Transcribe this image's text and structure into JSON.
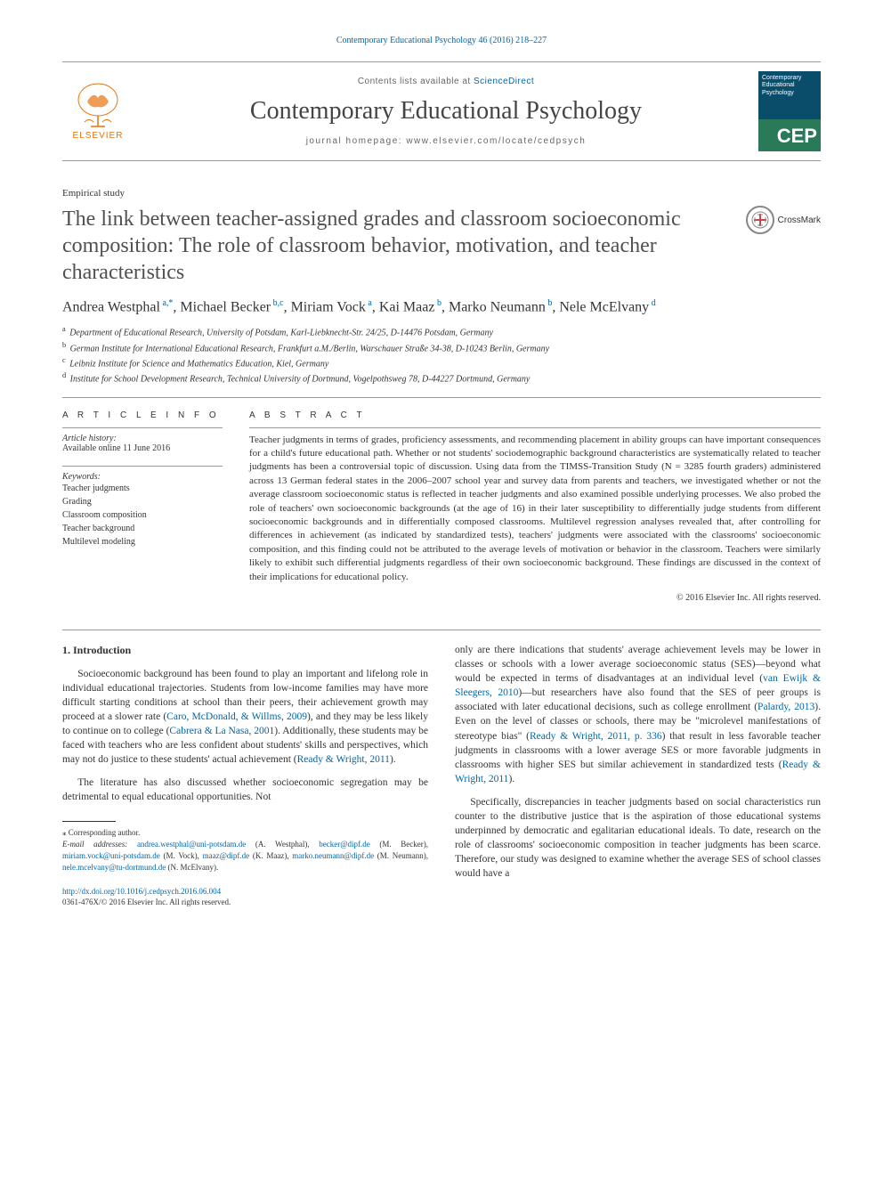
{
  "citation": "Contemporary Educational Psychology 46 (2016) 218–227",
  "masthead": {
    "contents_prefix": "Contents lists available at ",
    "contents_link": "ScienceDirect",
    "journal_name": "Contemporary Educational Psychology",
    "homepage_prefix": "journal homepage: ",
    "homepage_url": "www.elsevier.com/locate/cedpsych",
    "elsevier": "ELSEVIER",
    "cover": {
      "title": "Contemporary Educational Psychology",
      "abbr": "CEP"
    }
  },
  "crossmark_label": "CrossMark",
  "article_type": "Empirical study",
  "title": "The link between teacher-assigned grades and classroom socioeconomic composition: The role of classroom behavior, motivation, and teacher characteristics",
  "authors_html": "Andrea Westphal<sup> a,*</sup>, Michael Becker<sup> b,c</sup>, Miriam Vock<sup> a</sup>, Kai Maaz<sup> b</sup>, Marko Neumann<sup> b</sup>, Nele McElvany<sup> d</sup>",
  "affiliations": [
    {
      "sup": "a",
      "text": "Department of Educational Research, University of Potsdam, Karl-Liebknecht-Str. 24/25, D-14476 Potsdam, Germany"
    },
    {
      "sup": "b",
      "text": "German Institute for International Educational Research, Frankfurt a.M./Berlin, Warschauer Straße 34-38, D-10243 Berlin, Germany"
    },
    {
      "sup": "c",
      "text": "Leibniz Institute for Science and Mathematics Education, Kiel, Germany"
    },
    {
      "sup": "d",
      "text": "Institute for School Development Research, Technical University of Dortmund, Vogelpothsweg 78, D-44227 Dortmund, Germany"
    }
  ],
  "info": {
    "heading": "A R T I C L E   I N F O",
    "history_label": "Article history:",
    "history_text": "Available online 11 June 2016",
    "keywords_label": "Keywords:",
    "keywords": [
      "Teacher judgments",
      "Grading",
      "Classroom composition",
      "Teacher background",
      "Multilevel modeling"
    ]
  },
  "abstract": {
    "heading": "A B S T R A C T",
    "text": "Teacher judgments in terms of grades, proficiency assessments, and recommending placement in ability groups can have important consequences for a child's future educational path. Whether or not students' sociodemographic background characteristics are systematically related to teacher judgments has been a controversial topic of discussion. Using data from the TIMSS-Transition Study (N = 3285 fourth graders) administered across 13 German federal states in the 2006–2007 school year and survey data from parents and teachers, we investigated whether or not the average classroom socioeconomic status is reflected in teacher judgments and also examined possible underlying processes. We also probed the role of teachers' own socioeconomic backgrounds (at the age of 16) in their later susceptibility to differentially judge students from different socioeconomic backgrounds and in differentially composed classrooms. Multilevel regression analyses revealed that, after controlling for differences in achievement (as indicated by standardized tests), teachers' judgments were associated with the classrooms' socioeconomic composition, and this finding could not be attributed to the average levels of motivation or behavior in the classroom. Teachers were similarly likely to exhibit such differential judgments regardless of their own socioeconomic background. These findings are discussed in the context of their implications for educational policy.",
    "copyright": "© 2016 Elsevier Inc. All rights reserved."
  },
  "body": {
    "section_heading": "1. Introduction",
    "left_p1_a": "Socioeconomic background has been found to play an important and lifelong role in individual educational trajectories. Students from low-income families may have more difficult starting conditions at school than their peers, their achievement growth may proceed at a slower rate (",
    "cite1": "Caro, McDonald, & Willms, 2009",
    "left_p1_b": "), and they may be less likely to continue on to college (",
    "cite2": "Cabrera & La Nasa, 2001",
    "left_p1_c": "). Additionally, these students may be faced with teachers who are less confident about students' skills and perspectives, which may not do justice to these students' actual achievement (",
    "cite3": "Ready & Wright, 2011",
    "left_p1_d": ").",
    "left_p2": "The literature has also discussed whether socioeconomic segregation may be detrimental to equal educational opportunities. Not",
    "right_p1_a": "only are there indications that students' average achievement levels may be lower in classes or schools with a lower average socioeconomic status (SES)—beyond what would be expected in terms of disadvantages at an individual level (",
    "cite4": "van Ewijk & Sleegers, 2010",
    "right_p1_b": ")—but researchers have also found that the SES of peer groups is associated with later educational decisions, such as college enrollment (",
    "cite5": "Palardy, 2013",
    "right_p1_c": "). Even on the level of classes or schools, there may be \"microlevel manifestations of stereotype bias\" (",
    "cite6": "Ready & Wright, 2011, p. 336",
    "right_p1_d": ") that result in less favorable teacher judgments in classrooms with a lower average SES or more favorable judgments in classrooms with higher SES but similar achievement in standardized tests (",
    "cite7": "Ready & Wright, 2011",
    "right_p1_e": ").",
    "right_p2": "Specifically, discrepancies in teacher judgments based on social characteristics run counter to the distributive justice that is the aspiration of those educational systems underpinned by democratic and egalitarian educational ideals. To date, research on the role of classrooms' socioeconomic composition in teacher judgments has been scarce. Therefore, our study was designed to examine whether the average SES of school classes would have a"
  },
  "footnotes": {
    "corr_label": "⁎ Corresponding author.",
    "email_label": "E-mail addresses:",
    "emails": [
      {
        "addr": "andrea.westphal@uni-potsdam.de",
        "who": "(A. Westphal)"
      },
      {
        "addr": "becker@dipf.de",
        "who": "(M. Becker)"
      },
      {
        "addr": "miriam.vock@uni-potsdam.de",
        "who": "(M. Vock)"
      },
      {
        "addr": "maaz@dipf.de",
        "who": "(K. Maaz)"
      },
      {
        "addr": "marko.neumann@dipf.de",
        "who": "(M. Neumann)"
      },
      {
        "addr": "nele.mcelvany@tu-dortmund.de",
        "who": "(N. McElvany)"
      }
    ]
  },
  "footer": {
    "doi": "http://dx.doi.org/10.1016/j.cedpsych.2016.06.004",
    "issn_copyright": "0361-476X/© 2016 Elsevier Inc. All rights reserved."
  },
  "colors": {
    "link": "#0066aa",
    "elsevier_orange": "#e8730b",
    "text": "#333333",
    "rule": "#999999"
  }
}
